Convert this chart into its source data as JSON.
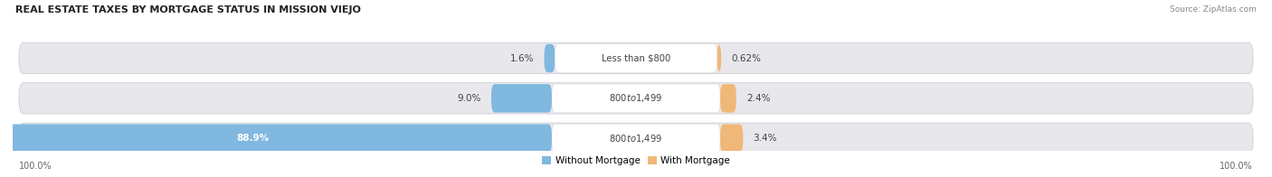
{
  "title": "REAL ESTATE TAXES BY MORTGAGE STATUS IN MISSION VIEJO",
  "source": "Source: ZipAtlas.com",
  "rows": [
    {
      "label": "Less than $800",
      "without_mortgage": 1.6,
      "with_mortgage": 0.62,
      "wo_pct_label": "1.6%",
      "wi_pct_label": "0.62%"
    },
    {
      "label": "$800 to $1,499",
      "without_mortgage": 9.0,
      "with_mortgage": 2.4,
      "wo_pct_label": "9.0%",
      "wi_pct_label": "2.4%"
    },
    {
      "label": "$800 to $1,499",
      "without_mortgage": 88.9,
      "with_mortgage": 3.4,
      "wo_pct_label": "88.9%",
      "wi_pct_label": "3.4%"
    }
  ],
  "color_without": "#80B8E0",
  "color_with": "#F0B878",
  "bg_bar": "#E8E8EC",
  "label_box_color": "#FFFFFF",
  "legend_labels": [
    "Without Mortgage",
    "With Mortgage"
  ],
  "left_tick": "100.0%",
  "right_tick": "100.0%"
}
